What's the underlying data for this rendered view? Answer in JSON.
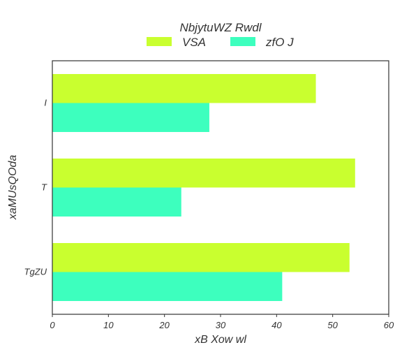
{
  "chart_data": {
    "type": "bar",
    "orientation": "horizontal",
    "title": "NbjytuWZ Rwdl",
    "xlabel": "xB Xow wl",
    "ylabel": "xaMUsQOda",
    "categories": [
      "I",
      "T",
      "TgZU"
    ],
    "series": [
      {
        "name": "VSA",
        "values": [
          47,
          54,
          53
        ],
        "color": "#c9ff2f"
      },
      {
        "name": "zfO J",
        "values": [
          28,
          23,
          41
        ],
        "color": "#3dffbe"
      }
    ],
    "xlim": [
      0,
      60
    ],
    "xticks": [
      "0",
      "10",
      "20",
      "30",
      "40",
      "50",
      "60"
    ],
    "grid": false,
    "legend_position": "top-center"
  }
}
